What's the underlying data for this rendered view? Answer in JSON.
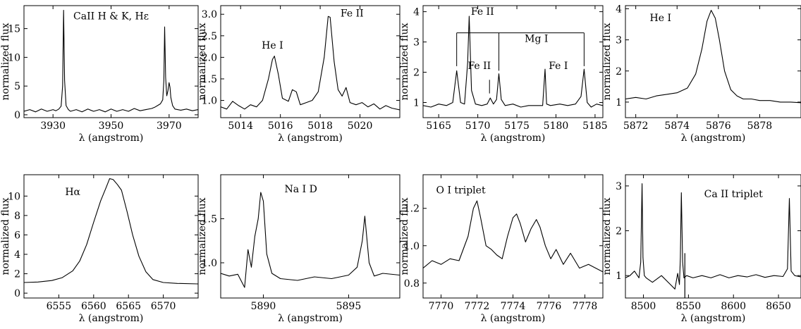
{
  "chart_data": [
    {
      "type": "line",
      "title": "",
      "annotation": "CaII H & K, Hε",
      "xlabel": "λ (angstrom)",
      "ylabel": "normalized flux",
      "xlim": [
        3920,
        3980
      ],
      "ylim": [
        -0.5,
        19
      ],
      "xticks": [
        3930,
        3950,
        3970
      ],
      "yticks": [
        0,
        5,
        10,
        15
      ],
      "series": [
        {
          "x": [
            3920,
            3922,
            3924,
            3926,
            3928,
            3930,
            3931,
            3932,
            3932.8,
            3933.3,
            3933.66,
            3934.0,
            3934.5,
            3935.3,
            3936,
            3938,
            3940,
            3942,
            3944,
            3946,
            3948,
            3950,
            3952,
            3954,
            3956,
            3958,
            3960,
            3962,
            3964,
            3965,
            3966,
            3967,
            3967.8,
            3968.2,
            3968.47,
            3968.8,
            3969.2,
            3969.6,
            3970.0,
            3970.3,
            3970.6,
            3971.2,
            3972,
            3974,
            3976,
            3978,
            3980
          ],
          "y": [
            0.6,
            0.9,
            0.5,
            1.0,
            0.6,
            0.9,
            0.7,
            1.0,
            1.5,
            5.0,
            18.2,
            6.0,
            1.6,
            0.9,
            0.6,
            0.9,
            0.5,
            1.0,
            0.6,
            0.9,
            0.5,
            1.0,
            0.6,
            0.9,
            0.6,
            1.1,
            0.7,
            0.9,
            1.1,
            1.3,
            1.6,
            1.9,
            2.6,
            6.0,
            15.3,
            6.5,
            3.3,
            4.2,
            5.6,
            4.8,
            3.0,
            1.6,
            1.0,
            0.8,
            1.0,
            0.7,
            0.9
          ]
        }
      ]
    },
    {
      "type": "line",
      "title": "",
      "annotation": "",
      "peak_labels": [
        "He I",
        "Fe II"
      ],
      "xlabel": "λ (angstrom)",
      "ylabel": "normalized flux",
      "xlim": [
        5013,
        5022
      ],
      "ylim": [
        0.6,
        3.2
      ],
      "xticks": [
        5014,
        5016,
        5018,
        5020
      ],
      "yticks": [
        1.0,
        1.5,
        2.0,
        2.5,
        3.0
      ],
      "series": [
        {
          "x": [
            5013,
            5013.3,
            5013.6,
            5013.9,
            5014.2,
            5014.5,
            5014.8,
            5015.1,
            5015.4,
            5015.6,
            5015.7,
            5015.9,
            5016.1,
            5016.4,
            5016.6,
            5016.8,
            5017.0,
            5017.3,
            5017.6,
            5017.9,
            5018.2,
            5018.4,
            5018.5,
            5018.7,
            5018.9,
            5019.1,
            5019.3,
            5019.5,
            5019.8,
            5020.1,
            5020.4,
            5020.7,
            5021.0,
            5021.3,
            5021.6,
            5022
          ],
          "y": [
            0.85,
            0.8,
            0.98,
            0.88,
            0.8,
            0.9,
            0.85,
            1.0,
            1.5,
            1.95,
            2.03,
            1.6,
            1.05,
            0.98,
            1.25,
            1.2,
            0.9,
            0.95,
            1.0,
            1.2,
            2.0,
            2.95,
            2.93,
            1.9,
            1.25,
            1.1,
            1.3,
            0.95,
            0.9,
            0.95,
            0.85,
            0.92,
            0.8,
            0.88,
            0.82,
            0.78
          ]
        }
      ]
    },
    {
      "type": "line",
      "title": "",
      "annotation": "",
      "peak_labels": [
        "Fe II",
        "Mg I",
        "Fe II",
        "Fe I"
      ],
      "xlabel": "λ (angstrom)",
      "ylabel": "normalized flux",
      "xlim": [
        5163,
        5186
      ],
      "ylim": [
        0.5,
        4.2
      ],
      "xticks": [
        5165,
        5170,
        5175,
        5180,
        5185
      ],
      "yticks": [
        1,
        2,
        3,
        4
      ],
      "series": [
        {
          "x": [
            5163,
            5164,
            5165,
            5166,
            5166.8,
            5167.3,
            5167.8,
            5168.3,
            5168.7,
            5168.9,
            5169.2,
            5169.7,
            5170.5,
            5171.2,
            5171.6,
            5172.0,
            5172.4,
            5172.7,
            5173.0,
            5173.5,
            5174.5,
            5175.5,
            5176.5,
            5177.5,
            5178.3,
            5178.6,
            5178.8,
            5179.3,
            5180.5,
            5181.5,
            5182.5,
            5183.2,
            5183.6,
            5184.0,
            5184.5,
            5185.2,
            5186
          ],
          "y": [
            0.9,
            0.85,
            0.95,
            0.9,
            1.0,
            2.05,
            1.0,
            0.95,
            2.3,
            3.85,
            1.4,
            0.95,
            0.9,
            0.95,
            1.15,
            0.95,
            1.1,
            1.95,
            1.1,
            0.9,
            0.95,
            0.85,
            0.9,
            0.9,
            0.9,
            2.1,
            0.95,
            0.9,
            0.95,
            0.9,
            0.95,
            1.2,
            2.1,
            1.0,
            0.85,
            0.95,
            0.9
          ]
        }
      ]
    },
    {
      "type": "line",
      "title": "",
      "annotation": "He I",
      "xlabel": "λ (angstrom)",
      "ylabel": "normalized flux",
      "xlim": [
        5871.5,
        5880
      ],
      "ylim": [
        0.5,
        4.1
      ],
      "xticks": [
        5872,
        5874,
        5876,
        5878
      ],
      "yticks": [
        1,
        2,
        3,
        4
      ],
      "series": [
        {
          "x": [
            5871.5,
            5872,
            5872.5,
            5873,
            5873.5,
            5874,
            5874.5,
            5874.9,
            5875.2,
            5875.45,
            5875.65,
            5875.85,
            5876.05,
            5876.3,
            5876.6,
            5876.9,
            5877.2,
            5877.6,
            5878,
            5878.5,
            5879,
            5879.5,
            5880
          ],
          "y": [
            1.1,
            1.15,
            1.1,
            1.2,
            1.25,
            1.3,
            1.45,
            1.9,
            2.7,
            3.6,
            3.95,
            3.7,
            3.0,
            2.0,
            1.4,
            1.2,
            1.1,
            1.1,
            1.05,
            1.05,
            1.0,
            1.0,
            0.98
          ]
        }
      ]
    },
    {
      "type": "line",
      "title": "",
      "annotation": "Hα",
      "xlabel": "λ (angstrom)",
      "ylabel": "normalized flux",
      "xlim": [
        6550,
        6575
      ],
      "ylim": [
        -0.5,
        12.2
      ],
      "xticks": [
        6555,
        6560,
        6565,
        6570
      ],
      "yticks": [
        0,
        2,
        4,
        6,
        8,
        10
      ],
      "series": [
        {
          "x": [
            6550,
            6552,
            6554,
            6555.5,
            6557,
            6558,
            6559,
            6560,
            6561,
            6561.8,
            6562.3,
            6562.8,
            6563.4,
            6564.0,
            6564.8,
            6565.6,
            6566.5,
            6567.5,
            6568.5,
            6570,
            6572,
            6575
          ],
          "y": [
            1.1,
            1.15,
            1.3,
            1.6,
            2.3,
            3.3,
            5.0,
            7.3,
            9.5,
            10.9,
            11.8,
            11.7,
            11.2,
            10.6,
            8.4,
            6.0,
            3.8,
            2.2,
            1.4,
            1.1,
            1.0,
            0.95
          ]
        }
      ]
    },
    {
      "type": "line",
      "title": "",
      "annotation": "Na I D",
      "xlabel": "λ (angstrom)",
      "ylabel": "normalized flux",
      "xlim": [
        5887.5,
        5898
      ],
      "ylim": [
        0.6,
        2.0
      ],
      "xticks": [
        5890,
        5895
      ],
      "yticks": [
        1.0,
        1.5
      ],
      "series": [
        {
          "x": [
            5887.5,
            5888,
            5888.5,
            5888.9,
            5889.1,
            5889.3,
            5889.5,
            5889.7,
            5889.85,
            5890.0,
            5890.2,
            5890.5,
            5891,
            5892,
            5893,
            5894,
            5895,
            5895.5,
            5895.8,
            5895.95,
            5896.2,
            5896.5,
            5897,
            5898
          ],
          "y": [
            0.88,
            0.85,
            0.87,
            0.72,
            1.15,
            0.95,
            1.3,
            1.5,
            1.8,
            1.7,
            1.1,
            0.88,
            0.82,
            0.8,
            0.84,
            0.82,
            0.86,
            0.95,
            1.25,
            1.53,
            1.0,
            0.85,
            0.88,
            0.86
          ]
        }
      ]
    },
    {
      "type": "line",
      "title": "",
      "annotation": "O I triplet",
      "xlabel": "λ (angstrom)",
      "ylabel": "normalized flux",
      "xlim": [
        7769,
        7779
      ],
      "ylim": [
        0.72,
        1.38
      ],
      "xticks": [
        7770,
        7772,
        7774,
        7776,
        7778
      ],
      "yticks": [
        0.8,
        1.0,
        1.2
      ],
      "series": [
        {
          "x": [
            7769,
            7769.5,
            7770,
            7770.5,
            7771,
            7771.5,
            7771.8,
            7772.0,
            7772.2,
            7772.5,
            7772.8,
            7773.1,
            7773.4,
            7773.7,
            7774.0,
            7774.2,
            7774.4,
            7774.7,
            7775.0,
            7775.3,
            7775.5,
            7775.8,
            7776.1,
            7776.4,
            7776.8,
            7777.2,
            7777.7,
            7778.2,
            7779
          ],
          "y": [
            0.88,
            0.92,
            0.9,
            0.93,
            0.92,
            1.05,
            1.2,
            1.24,
            1.15,
            1.0,
            0.98,
            0.95,
            0.93,
            1.05,
            1.15,
            1.17,
            1.12,
            1.02,
            1.09,
            1.14,
            1.1,
            1.0,
            0.93,
            0.98,
            0.9,
            0.96,
            0.88,
            0.9,
            0.86
          ]
        }
      ]
    },
    {
      "type": "line",
      "title": "",
      "annotation": "Ca II triplet",
      "xlabel": "λ (angstrom)",
      "ylabel": "normalized flux",
      "xlim": [
        8480,
        8675
      ],
      "ylim": [
        0.5,
        3.25
      ],
      "xticks": [
        8500,
        8550,
        8600,
        8650
      ],
      "yticks": [
        1,
        2,
        3
      ],
      "series": [
        {
          "x": [
            8480,
            8485,
            8490,
            8495,
            8497,
            8498.5,
            8499.5,
            8501,
            8503,
            8510,
            8520,
            8530,
            8535,
            8538,
            8540,
            8541,
            8542.1,
            8543.5,
            8545,
            8548,
            8555,
            8565,
            8575,
            8585,
            8595,
            8605,
            8615,
            8625,
            8635,
            8645,
            8655,
            8660,
            8662.1,
            8664,
            8668,
            8675
          ],
          "y": [
            0.95,
            1.0,
            1.1,
            0.95,
            1.3,
            3.05,
            1.4,
            1.0,
            0.95,
            0.85,
            1.0,
            0.8,
            0.7,
            1.05,
            0.8,
            1.4,
            2.85,
            1.3,
            0.95,
            1.0,
            0.95,
            1.0,
            0.95,
            1.02,
            0.95,
            1.0,
            0.97,
            1.02,
            0.96,
            1.0,
            0.98,
            1.15,
            2.72,
            1.1,
            1.0,
            0.97
          ]
        }
      ]
    }
  ]
}
